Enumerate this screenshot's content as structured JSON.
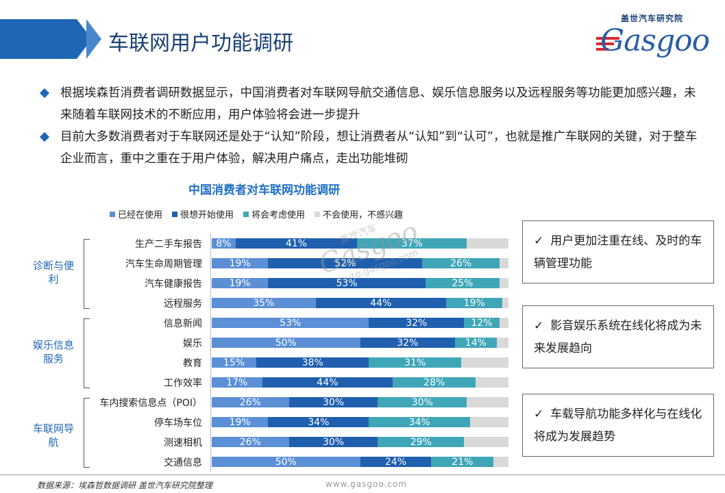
{
  "header": {
    "title": "车联网用户功能调研"
  },
  "logo": {
    "cn": "盖世汽车研究院",
    "en": "Gasgoo"
  },
  "bullets": [
    "根据埃森哲消费者调研数据显示，中国消费者对车联网导航交通信息、娱乐信息服务以及远程服务等功能更加感兴趣，未来随着车联网技术的不断应用，用户体验将会进一步提升",
    "目前大多数消费者对于车联网还是处于“认知”阶段，想让消费者从“认知”到“认可”，也就是推广车联网的关键，对于整车企业而言，重中之重在于用户体验，解决用户痛点，走出功能堆砌"
  ],
  "chart_data": {
    "type": "bar",
    "orientation": "horizontal",
    "stacked": true,
    "title": "中国消费者对车联网功能调研",
    "legend_position": "top",
    "categories": [
      "生产二手车报告",
      "汽车生命周期管理",
      "汽车健康报告",
      "远程服务",
      "信息新闻",
      "娱乐",
      "教育",
      "工作效率",
      "车内搜索信息点（POI）",
      "停车场车位",
      "测速相机",
      "交通信息"
    ],
    "groups": [
      {
        "label": "诊断与便利",
        "categories": [
          "生产二手车报告",
          "汽车生命周期管理",
          "汽车健康报告",
          "远程服务"
        ]
      },
      {
        "label": "娱乐信息服务",
        "categories": [
          "信息新闻",
          "娱乐",
          "教育",
          "工作效率"
        ]
      },
      {
        "label": "车联网导航",
        "categories": [
          "车内搜索信息点（POI）",
          "停车场车位",
          "测速相机",
          "交通信息"
        ]
      }
    ],
    "series": [
      {
        "name": "已经在使用",
        "color": "#5b8fd6",
        "values": [
          8,
          19,
          19,
          35,
          53,
          50,
          15,
          17,
          26,
          19,
          26,
          50
        ]
      },
      {
        "name": "很想开始使用",
        "color": "#1f5fae",
        "values": [
          41,
          52,
          53,
          44,
          32,
          32,
          38,
          44,
          30,
          34,
          30,
          24
        ]
      },
      {
        "name": "将会考虑使用",
        "color": "#3fa6b8",
        "values": [
          37,
          26,
          25,
          19,
          12,
          14,
          31,
          28,
          30,
          34,
          29,
          21
        ]
      },
      {
        "name": "不会使用，不感兴趣",
        "color": "#d9d9d9",
        "values": [
          14,
          3,
          3,
          2,
          3,
          4,
          16,
          11,
          14,
          13,
          15,
          5
        ]
      }
    ],
    "xlim": [
      0,
      100
    ],
    "unit": "%"
  },
  "notes": [
    "用户更加注重在线、及时的车辆管理功能",
    "影音娱乐系统在线化将成为未来发展趋向",
    "车载导航功能多样化与在线化将成为发展趋势"
  ],
  "note_tick": "✓",
  "footer": {
    "source": "数据来源：埃森哲数据调研   盖世汽车研究院整理",
    "site": "www.gasgoo.com"
  },
  "watermark": {
    "logo": "Gasgoo",
    "cn": "盖世汽车",
    "url": "auto.gasgoo.com"
  }
}
